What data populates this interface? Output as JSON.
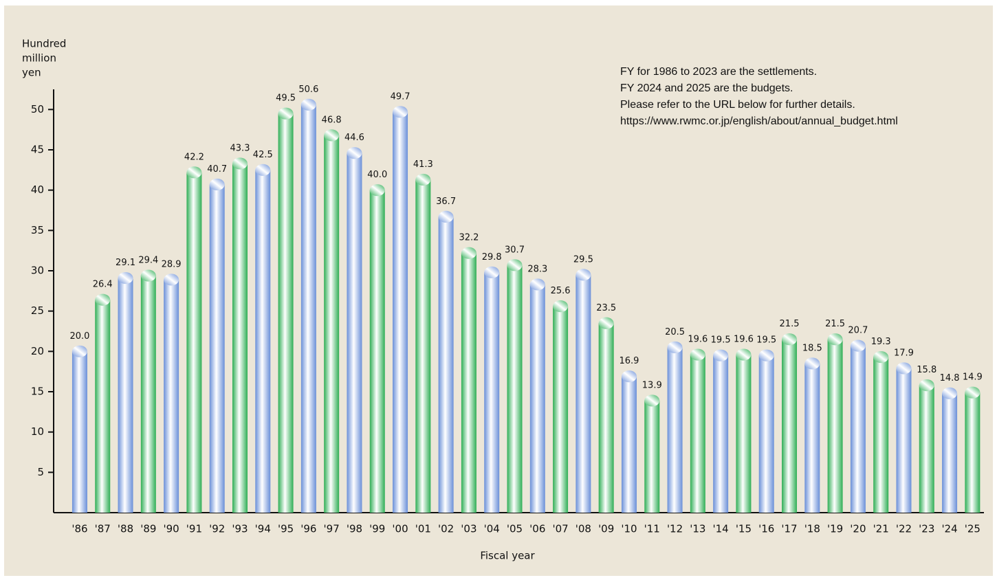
{
  "chart_data": {
    "type": "bar",
    "ylabel": [
      "Hundred",
      "million",
      "yen"
    ],
    "xlabel": "Fiscal year",
    "annotations": [
      "FY for 1986 to 2023 are the settlements.",
      "FY 2024 and 2025 are the budgets.",
      "Please refer to the URL below for further details.",
      "https://www.rwmc.or.jp/english/about/annual_budget.html"
    ],
    "categories": [
      "'86",
      "'87",
      "'88",
      "'89",
      "'90",
      "'91",
      "'92",
      "'93",
      "'94",
      "'95",
      "'96",
      "'97",
      "'98",
      "'99",
      "'00",
      "'01",
      "'02",
      "'03",
      "'04",
      "'05",
      "'06",
      "'07",
      "'08",
      "'09",
      "'10",
      "'11",
      "'12",
      "'13",
      "'14",
      "'15",
      "'16",
      "'17",
      "'18",
      "'19",
      "'20",
      "'21",
      "'22",
      "'23",
      "'24",
      "'25"
    ],
    "values": [
      20.0,
      26.4,
      29.1,
      29.4,
      28.9,
      42.2,
      40.7,
      43.3,
      42.5,
      49.5,
      50.6,
      46.8,
      44.6,
      40.0,
      49.7,
      41.3,
      36.7,
      32.2,
      29.8,
      30.7,
      28.3,
      25.6,
      29.5,
      23.5,
      16.9,
      13.9,
      20.5,
      19.6,
      19.5,
      19.6,
      19.5,
      21.5,
      18.5,
      21.5,
      20.7,
      19.3,
      17.9,
      15.8,
      14.8,
      14.9
    ],
    "value_labels": [
      "20.0",
      "26.4",
      "29.1",
      "29.4",
      "28.9",
      "42.2",
      "40.7",
      "43.3",
      "42.5",
      "49.5",
      "50.6",
      "46.8",
      "44.6",
      "40.0",
      "49.7",
      "41.3",
      "36.7",
      "32.2",
      "29.8",
      "30.7",
      "28.3",
      "25.6",
      "29.5",
      "23.5",
      "16.9",
      "13.9",
      "20.5",
      "19.6",
      "19.5",
      "19.6",
      "19.5",
      "21.5",
      "18.5",
      "21.5",
      "20.7",
      "19.3",
      "17.9",
      "15.8",
      "14.8",
      "14.9"
    ],
    "colors": [
      "#6a8fd8",
      "#2fae55"
    ],
    "ylim": [
      0,
      52.5
    ],
    "yticks": [
      5,
      10,
      15,
      20,
      25,
      30,
      35,
      40,
      45,
      50
    ]
  }
}
